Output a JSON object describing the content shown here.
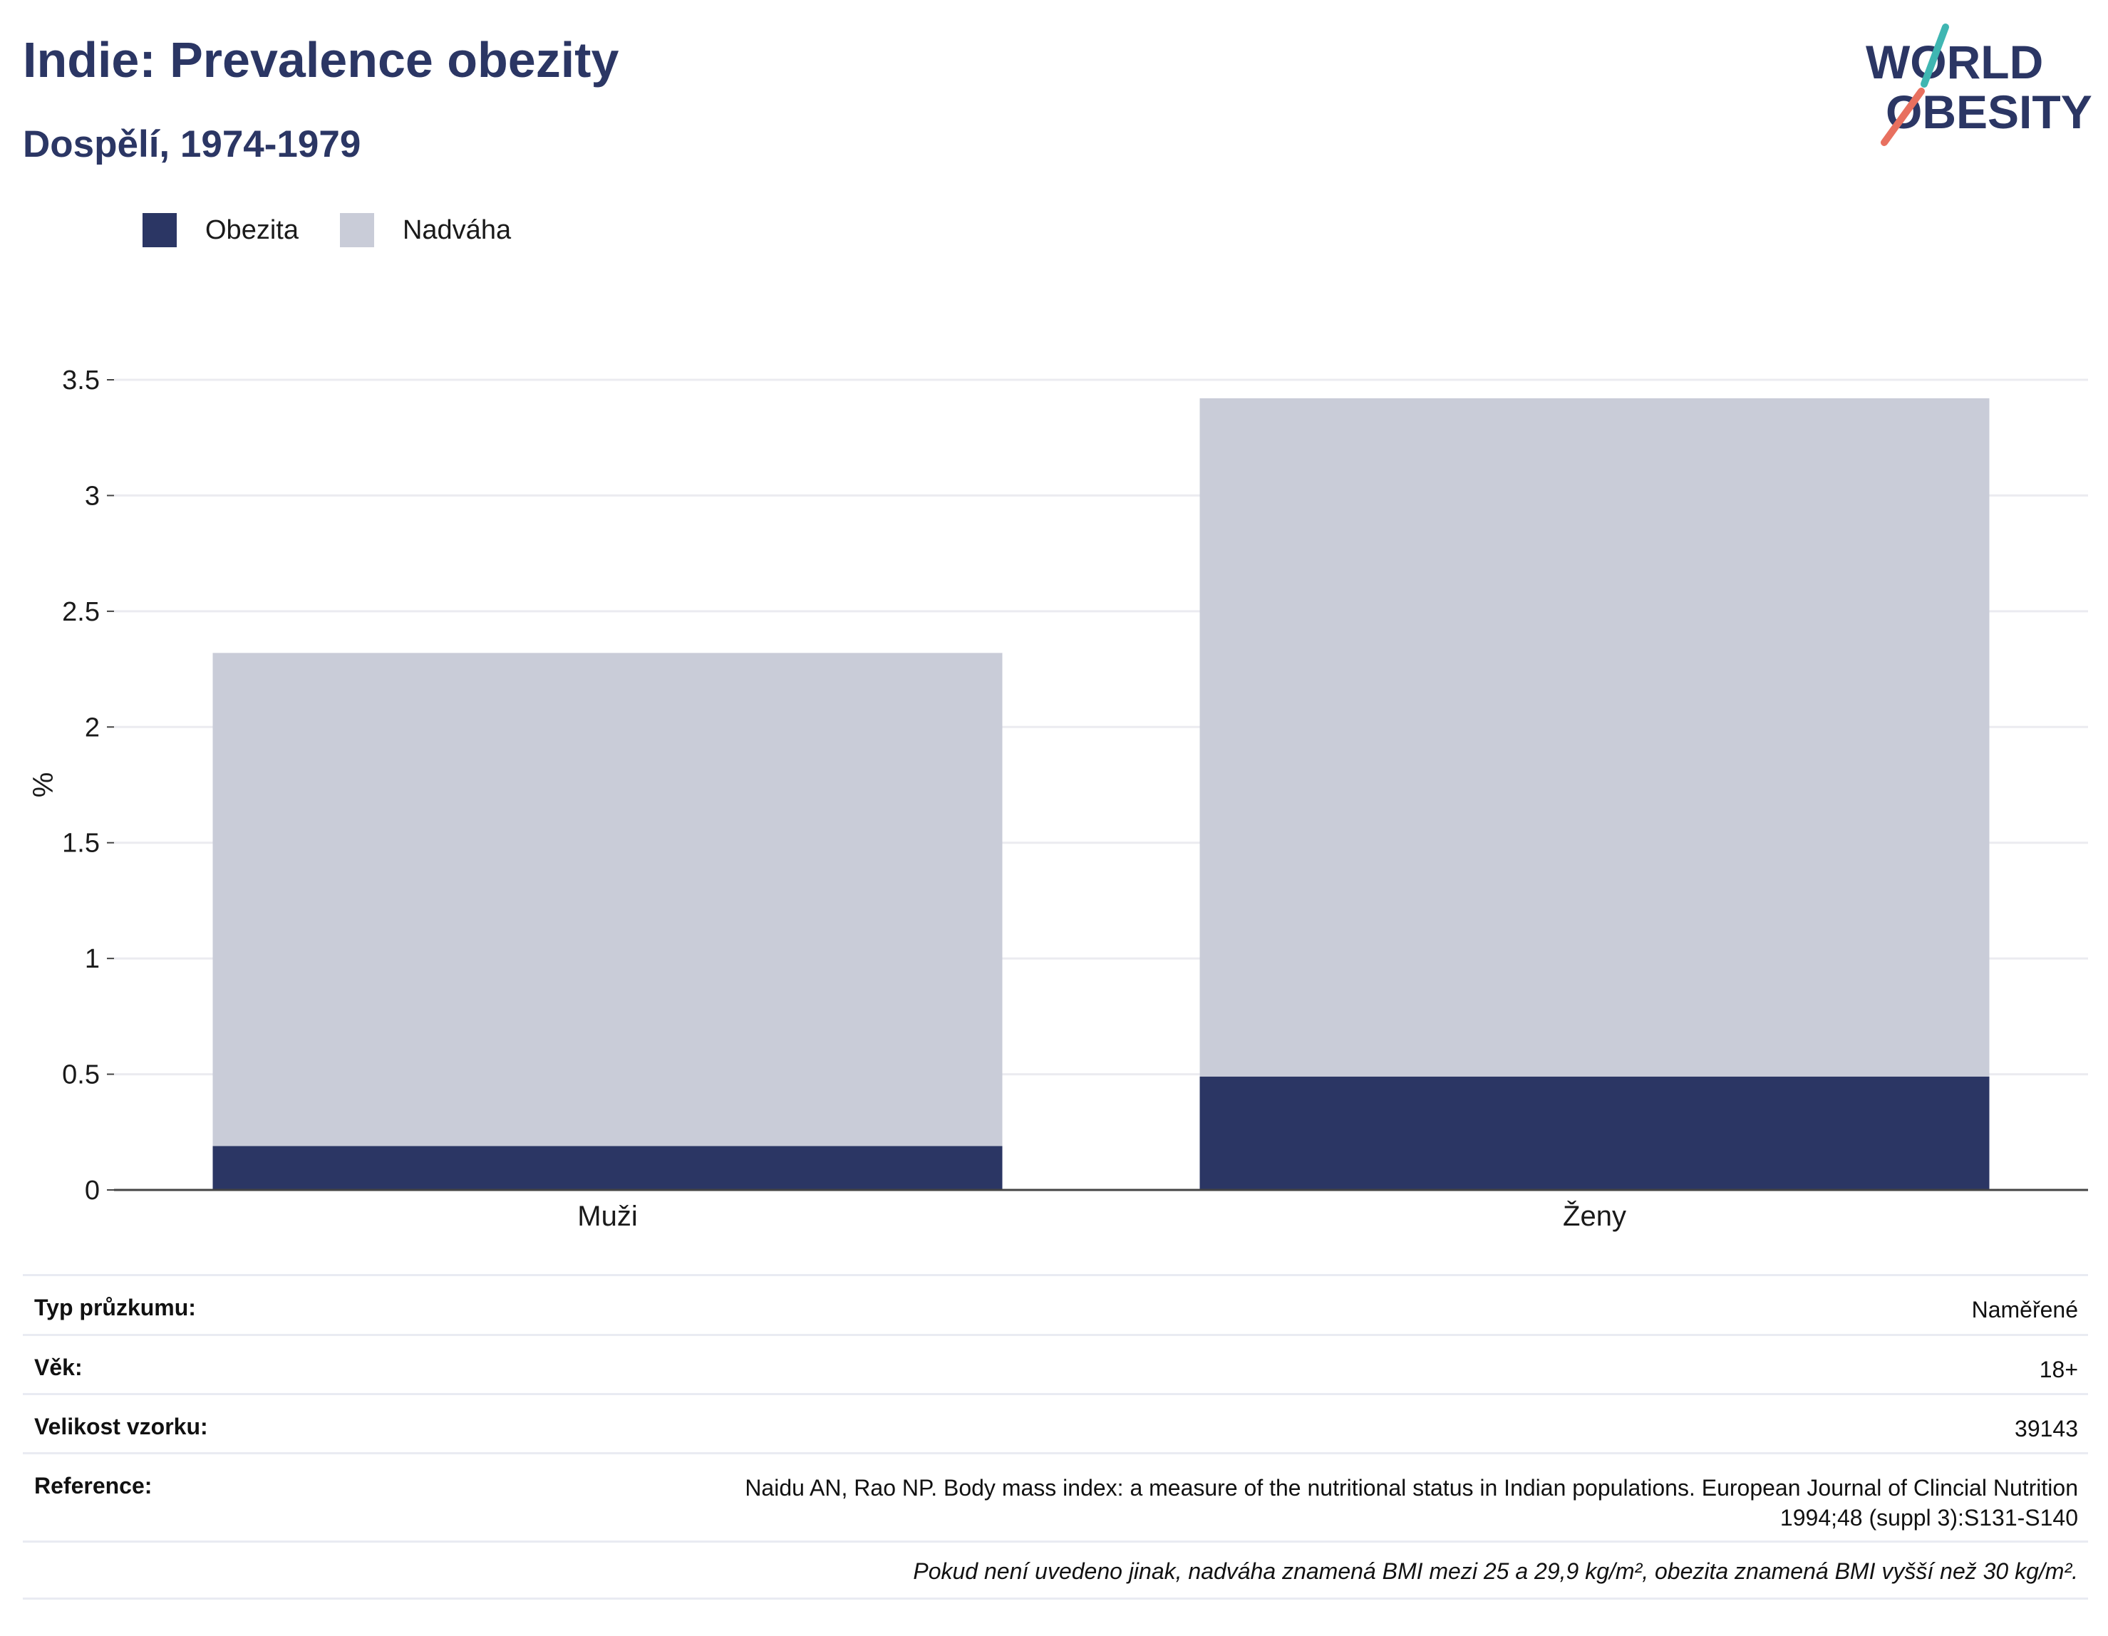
{
  "header": {
    "title": "Indie: Prevalence obezity",
    "subtitle": "Dospělí, 1974-1979"
  },
  "logo": {
    "line1": "WORLD",
    "line2": "OBESITY",
    "colors": {
      "text": "#2b3664",
      "teal": "#3fb6b2",
      "coral": "#e8705f"
    }
  },
  "legend": [
    {
      "label": "Obezita",
      "color": "#2b3664"
    },
    {
      "label": "Nadváha",
      "color": "#c9ccd8"
    }
  ],
  "chart_data": {
    "type": "bar",
    "stacked": true,
    "categories": [
      "Muži",
      "Ženy"
    ],
    "series": [
      {
        "name": "Obezita",
        "color": "#2b3664",
        "values": [
          0.19,
          0.49
        ]
      },
      {
        "name": "Nadváha",
        "color": "#c9ccd8",
        "values": [
          2.13,
          2.93
        ]
      }
    ],
    "ylabel": "%",
    "ylim": [
      0,
      3.5
    ],
    "yticks": [
      0,
      0.5,
      1,
      1.5,
      2,
      2.5,
      3,
      3.5
    ],
    "ytick_labels": [
      "0",
      "0.5",
      "1",
      "1.5",
      "2",
      "2.5",
      "3",
      "3.5"
    ],
    "grid": true
  },
  "info": [
    {
      "key": "Typ průzkumu:",
      "value": "Naměřené"
    },
    {
      "key": "Věk:",
      "value": "18+"
    },
    {
      "key": "Velikost vzorku:",
      "value": "39143"
    },
    {
      "key": "Reference:",
      "value_lines": [
        "Naidu AN, Rao NP. Body mass index: a measure of the nutritional status in Indian populations. European Journal of Clincial Nutrition",
        "1994;48 (suppl 3):S131-S140"
      ]
    }
  ],
  "note": "Pokud není uvedeno jinak, nadváha znamená BMI mezi 25 a 29,9 kg/m², obezita znamená BMI vyšší než 30 kg/m²."
}
